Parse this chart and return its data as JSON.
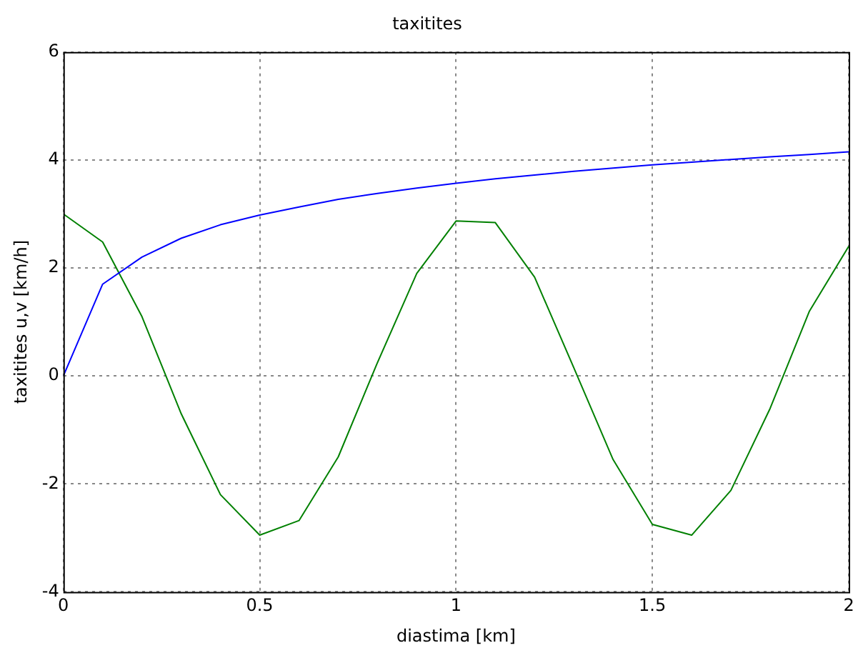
{
  "chart_data": {
    "type": "line",
    "title": "taxitites",
    "xlabel": "diastima [km]",
    "ylabel": "taxitites u,v [km/h]",
    "x": [
      0,
      0.1,
      0.2,
      0.3,
      0.4,
      0.5,
      0.6,
      0.7,
      0.8,
      0.9,
      1.0,
      1.1,
      1.2,
      1.3,
      1.4,
      1.5,
      1.6,
      1.7,
      1.8,
      1.9,
      2.0
    ],
    "series": [
      {
        "color": "#0000ff",
        "values": [
          0,
          1.7,
          2.2,
          2.55,
          2.8,
          2.98,
          3.13,
          3.27,
          3.38,
          3.48,
          3.57,
          3.65,
          3.72,
          3.79,
          3.85,
          3.91,
          3.96,
          4.01,
          4.06,
          4.1,
          4.15
        ]
      },
      {
        "color": "#008000",
        "values": [
          3.0,
          2.48,
          1.1,
          -0.7,
          -2.2,
          -2.95,
          -2.68,
          -1.5,
          0.25,
          1.9,
          2.87,
          2.84,
          1.83,
          0.15,
          -1.55,
          -2.75,
          -2.95,
          -2.12,
          -0.6,
          1.2,
          2.4
        ]
      }
    ],
    "xlim": [
      0,
      2
    ],
    "xticks": [
      0,
      0.5,
      1,
      1.5,
      2
    ],
    "ylim": [
      -4,
      6
    ],
    "yticks": [
      -4,
      -2,
      0,
      2,
      4,
      6
    ],
    "grid": true,
    "legend": false,
    "marker": "none",
    "line_style": "solid"
  }
}
